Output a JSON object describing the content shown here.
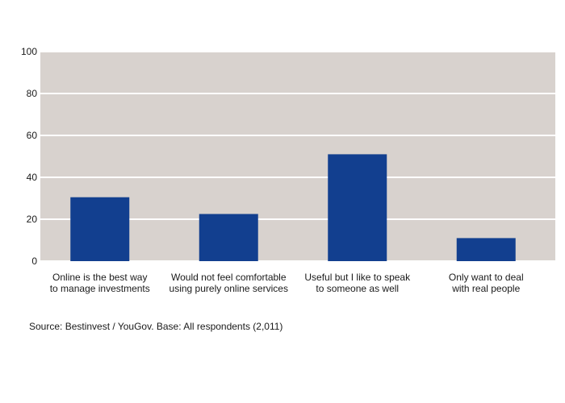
{
  "chart_data": {
    "type": "bar",
    "title": "",
    "xlabel": "",
    "ylabel": "",
    "categories": [
      [
        "Online is the best way",
        "to manage investments"
      ],
      [
        "Would not feel comfortable",
        "using purely online services"
      ],
      [
        "Useful but I like to speak",
        "to someone as well"
      ],
      [
        "Only want to deal",
        "with real people"
      ]
    ],
    "values": [
      30.5,
      22.5,
      51,
      11
    ],
    "ylim": [
      0,
      100
    ],
    "yticks": [
      0,
      20,
      40,
      60,
      80,
      100
    ],
    "grid": true,
    "legend": "none",
    "colors": {
      "bar": "#123f8f",
      "plot_background": "#d8d2ce",
      "gridline": "#ffffff"
    }
  },
  "source_note": "Source: Bestinvest / YouGov. Base: All respondents (2,011)"
}
